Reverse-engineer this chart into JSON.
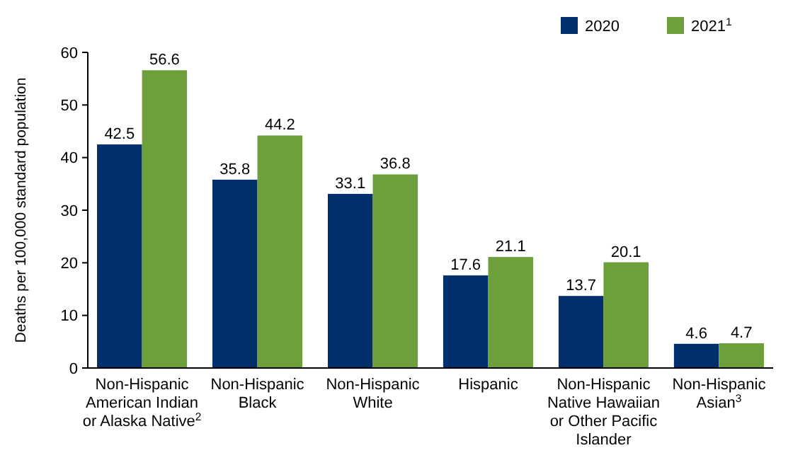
{
  "chart_data": {
    "type": "bar",
    "ylabel": "Deaths per 100,000 standard population",
    "categories": [
      "Non-Hispanic American Indian or Alaska Native$^{2}$",
      "Non-Hispanic Black",
      "Non-Hispanic White",
      "Hispanic",
      "Non-Hispanic Native Hawaiian or Other Pacific Islander",
      "Non-Hispanic Asian$^{3}$"
    ],
    "series": [
      {
        "name": "2020",
        "color": "#002f6c",
        "values": [
          42.5,
          35.8,
          33.1,
          17.6,
          13.7,
          4.6
        ]
      },
      {
        "name": "2021$^{1}$",
        "color": "#6d9f3a",
        "values": [
          56.6,
          44.2,
          36.8,
          21.1,
          20.1,
          4.7
        ]
      }
    ],
    "ylim": [
      0,
      60
    ],
    "yticks": [
      0,
      10,
      20,
      30,
      40,
      50,
      60
    ],
    "data_labels": true,
    "grid": false,
    "legend": "top right"
  }
}
